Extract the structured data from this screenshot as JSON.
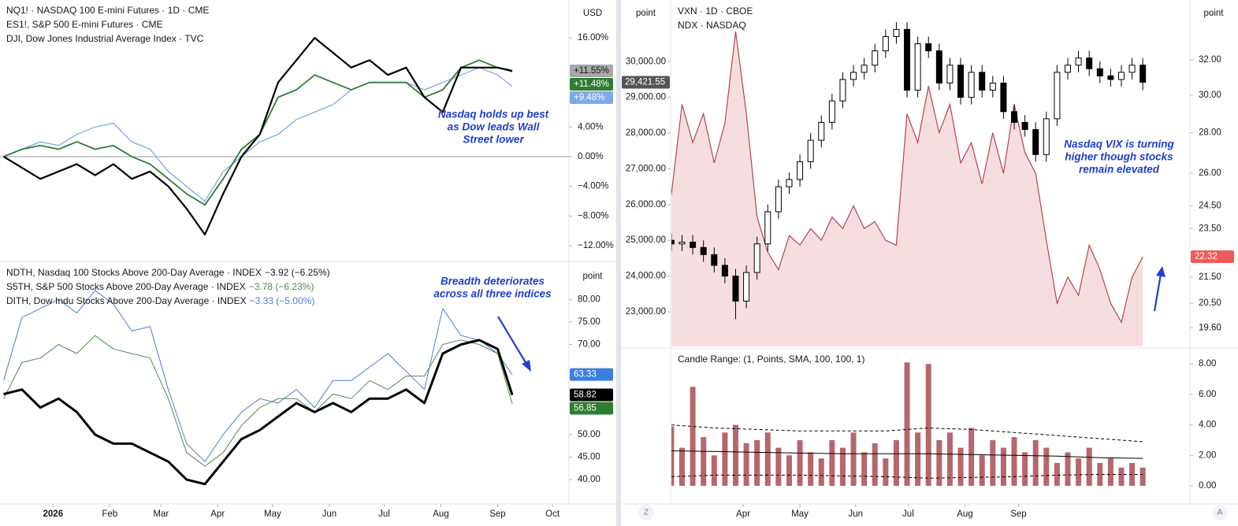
{
  "buttons": [
    "Z",
    "A"
  ],
  "chart_data": [
    {
      "type": "line",
      "y_unit": "USD",
      "zero_line": true,
      "x": [
        -26,
        -16,
        -6,
        4,
        14,
        24,
        34,
        44,
        54,
        64,
        74,
        84,
        94,
        104,
        114,
        124,
        134,
        144,
        154,
        164,
        174,
        184,
        194,
        204,
        214,
        224,
        234,
        244,
        252
      ],
      "xlim": [
        -28,
        283
      ],
      "ylim": [
        -13.9,
        21.1
      ],
      "yticks": [
        {
          "value": 16,
          "label": "16.00%"
        },
        {
          "value": 4,
          "label": "4.00%"
        },
        {
          "value": 0,
          "label": "0.00%"
        },
        {
          "value": -4,
          "label": "−4.00%"
        },
        {
          "value": -8,
          "label": "−8.00%"
        },
        {
          "value": -12,
          "label": "−12.00%"
        }
      ],
      "annotation": [
        "Nasdaq holds up best",
        "as Dow leads Wall",
        "Street lower"
      ],
      "series": [
        {
          "name": "NQ1! · NASDAQ 100 E-mini Futures · 1D · CME",
          "color": "#000000",
          "badge": "+11.55%",
          "badge_color": "#a8a8a8",
          "values": [
            0,
            -1.5,
            -3,
            -2,
            -1,
            -2.5,
            -1,
            -3,
            -2,
            -4,
            -7,
            -10.5,
            -5,
            0,
            3,
            10,
            13,
            16,
            14,
            12,
            13,
            11,
            12,
            8,
            6,
            12,
            12,
            12,
            11.55
          ]
        },
        {
          "name": "ES1!, S&P 500 E-mini Futures · CME",
          "color": "#2e7d32",
          "badge": "+11.48%",
          "badge_color": "#2e7d32",
          "values": [
            0,
            1,
            1.5,
            1,
            2,
            1,
            1.5,
            0,
            -1,
            -3,
            -5,
            -6.5,
            -3,
            1,
            3,
            8,
            9,
            11,
            10,
            9,
            10,
            10,
            10,
            8,
            9,
            12,
            13,
            12,
            11.48
          ]
        },
        {
          "name": "DJI, Dow Jones Industrial Average Index · TVC",
          "color": "#7fa9e6",
          "badge": "+9.48%",
          "badge_color": "#7fa9e6",
          "values": [
            0,
            1,
            2,
            1.5,
            3,
            4,
            4.5,
            2,
            1,
            -2,
            -4,
            -6,
            -2,
            0,
            2,
            3,
            5,
            6,
            7,
            9,
            10,
            10,
            10,
            9,
            10,
            11,
            12,
            11,
            9.48
          ]
        }
      ]
    },
    {
      "type": "line",
      "y_unit": "point",
      "x": [
        -26,
        -16,
        -6,
        4,
        14,
        24,
        34,
        44,
        54,
        64,
        74,
        84,
        94,
        104,
        114,
        124,
        134,
        144,
        154,
        164,
        174,
        184,
        194,
        204,
        214,
        224,
        234,
        244,
        252
      ],
      "xlim": [
        -28,
        283
      ],
      "ylim": [
        34.6,
        88.1
      ],
      "xticks": [
        {
          "value": 1,
          "label": "2026"
        },
        {
          "value": 32,
          "label": "Feb"
        },
        {
          "value": 60,
          "label": "Mar"
        },
        {
          "value": 91,
          "label": "Apr"
        },
        {
          "value": 121,
          "label": "May"
        },
        {
          "value": 152,
          "label": "Jun"
        },
        {
          "value": 182,
          "label": "Jul"
        },
        {
          "value": 213,
          "label": "Aug"
        },
        {
          "value": 244,
          "label": "Sep"
        },
        {
          "value": 274,
          "label": "Oct"
        }
      ],
      "yticks": [
        {
          "value": 80,
          "label": "80.00"
        },
        {
          "value": 75,
          "label": "75.00"
        },
        {
          "value": 70,
          "label": "70.00"
        },
        {
          "value": 50,
          "label": "50.00"
        },
        {
          "value": 45,
          "label": "45.00"
        },
        {
          "value": 40,
          "label": "40.00"
        }
      ],
      "annotation": [
        "Breadth deteriorates",
        "across all three indices"
      ],
      "series": [
        {
          "name": "NDTH, Nasdaq 100 Stocks Above 200-Day Average · INDEX",
          "change": "−3.92 (−6.25%)",
          "color": "#000000",
          "badge": "58.82",
          "badge_color": "#000000",
          "values": [
            59,
            60,
            56,
            58,
            55,
            50,
            48,
            48,
            46,
            44,
            40,
            39,
            44,
            49,
            51,
            54,
            57,
            55,
            57,
            55,
            58,
            58,
            60,
            57,
            68,
            70,
            71,
            69,
            58.82
          ]
        },
        {
          "name": "S5TH, S&P 500 Stocks Above 200-Day Average · INDEX",
          "change": "−3.78 (−6.23%)",
          "color": "#4c8a4c",
          "badge": "56.85",
          "badge_color": "#2e7d32",
          "values": [
            58,
            66,
            67,
            70,
            68,
            72,
            69,
            68,
            67,
            58,
            46,
            43,
            46,
            52,
            56,
            58,
            58,
            55,
            59,
            58,
            62,
            60,
            63,
            63,
            70,
            71,
            70,
            68,
            56.85
          ]
        },
        {
          "name": "DITH, Dow Indu Stocks Above 200-Day Average · INDEX",
          "change": "−3.33 (−5.00%)",
          "color": "#4a7ed8",
          "badge": "63.33",
          "badge_color": "#3d7fe0",
          "values": [
            62,
            76,
            78,
            80,
            77,
            82,
            79,
            73,
            74,
            60,
            48,
            44,
            50,
            55,
            58,
            57,
            60,
            56,
            62,
            62,
            65,
            68,
            64,
            60,
            78,
            72,
            71,
            68,
            63.33
          ]
        }
      ]
    },
    {
      "type": "candlestick",
      "y_unit": "point",
      "y2_unit": "point",
      "y2log": true,
      "x": [
        0,
        1,
        2,
        3,
        4,
        5,
        6,
        7,
        8,
        9,
        10,
        11,
        12,
        13,
        14,
        15,
        16,
        17,
        18,
        19,
        20,
        21,
        22,
        23,
        24,
        25,
        26,
        27,
        28,
        29,
        30,
        31,
        32,
        33,
        34,
        35,
        36,
        37,
        38,
        39,
        40,
        41,
        42,
        43,
        44
      ],
      "xlim": [
        -4.7,
        48.4
      ],
      "ylim": [
        22031,
        31723
      ],
      "y2lim": [
        18.94,
        35.7
      ],
      "yticks": [
        {
          "value": 30000,
          "label": "30,000.00"
        },
        {
          "value": 29000,
          "label": "29,000.00"
        },
        {
          "value": 28000,
          "label": "28,000.00"
        },
        {
          "value": 27000,
          "label": "27,000.00"
        },
        {
          "value": 26000,
          "label": "26,000.00"
        },
        {
          "value": 25000,
          "label": "25,000.00"
        },
        {
          "value": 24000,
          "label": "24,000.00"
        },
        {
          "value": 23000,
          "label": "23,000.00"
        }
      ],
      "y2ticks": [
        {
          "value": 32,
          "label": "32.00"
        },
        {
          "value": 30,
          "label": "30.00"
        },
        {
          "value": 28,
          "label": "28.00"
        },
        {
          "value": 26,
          "label": "26.00"
        },
        {
          "value": 24.5,
          "label": "24.50"
        },
        {
          "value": 23.5,
          "label": "23.50"
        },
        {
          "value": 21.5,
          "label": "21.50"
        },
        {
          "value": 20.5,
          "label": "20.50"
        },
        {
          "value": 19.6,
          "label": "19.60"
        }
      ],
      "annotation": [
        "Nasdaq VIX is turning",
        "higher though stocks",
        "remain elevated"
      ],
      "series": [
        {
          "name": "VXN · 1D · CBOE",
          "axis": "y2",
          "color": "#b5444f",
          "fill": "#f3d3d6",
          "badge": "22.32",
          "badge_color": "#f05a5a",
          "values": [
            25,
            29.5,
            27.5,
            29,
            26.5,
            28.5,
            33.7,
            29,
            24,
            22.5,
            21.8,
            23.2,
            22.8,
            23.5,
            23,
            24,
            23.5,
            24.5,
            23.5,
            23.8,
            23,
            22.8,
            29,
            27.5,
            30.5,
            28,
            29.5,
            26.5,
            27.5,
            25.5,
            28,
            26,
            29.5,
            27,
            26,
            23,
            20.5,
            21.5,
            20.8,
            22.8,
            21.8,
            20.5,
            19.8,
            21.5,
            22.32
          ]
        },
        {
          "name": "NDX · NASDAQ",
          "color": "#000000",
          "badge": "29,421.55",
          "badge_color": "#555555",
          "open": [
            25000,
            24900,
            24950,
            24800,
            24600,
            24300,
            24000,
            23300,
            24100,
            24900,
            25800,
            26500,
            26700,
            27200,
            27800,
            28300,
            28900,
            29500,
            29700,
            29900,
            30300,
            30700,
            30900,
            29200,
            30500,
            30300,
            29400,
            29900,
            29000,
            29700,
            29200,
            29400,
            28600,
            28300,
            28100,
            27400,
            28400,
            29700,
            29900,
            30100,
            29800,
            29600,
            29500,
            29700,
            29900
          ],
          "high": [
            25200,
            25150,
            25150,
            25000,
            24800,
            24500,
            24200,
            24300,
            25100,
            26000,
            26700,
            26900,
            27400,
            28000,
            28500,
            29100,
            29700,
            29900,
            30100,
            30500,
            30900,
            31100,
            31100,
            30700,
            30700,
            30500,
            30100,
            30100,
            29900,
            29900,
            29600,
            29600,
            28800,
            28500,
            28300,
            28600,
            29900,
            30100,
            30300,
            30300,
            30000,
            29800,
            29900,
            30100,
            30100
          ],
          "low": [
            24700,
            24700,
            24600,
            24400,
            24100,
            23800,
            22800,
            23100,
            23900,
            24700,
            25600,
            26300,
            26500,
            27000,
            27600,
            28100,
            28700,
            29300,
            29500,
            29700,
            30100,
            30500,
            29000,
            29000,
            30100,
            29200,
            29200,
            28800,
            28800,
            29000,
            29000,
            28400,
            28100,
            27900,
            27200,
            27200,
            28200,
            29500,
            29700,
            29600,
            29400,
            29300,
            29300,
            29500,
            29200
          ],
          "close": [
            24900,
            24950,
            24800,
            24600,
            24300,
            24000,
            23300,
            24100,
            24900,
            25800,
            26500,
            26700,
            27200,
            27800,
            28300,
            28900,
            29500,
            29700,
            29900,
            30300,
            30700,
            30900,
            29200,
            30500,
            30300,
            29400,
            29900,
            29000,
            29700,
            29200,
            29400,
            28600,
            28300,
            28100,
            27400,
            28400,
            29700,
            29900,
            30100,
            29800,
            29600,
            29500,
            29700,
            29900,
            29421.55
          ]
        }
      ]
    },
    {
      "type": "bar",
      "title": "Candle Range:  (1, Points, SMA, 100, 100, 1)",
      "color": "#b5676d",
      "x": [
        0,
        1,
        2,
        3,
        4,
        5,
        6,
        7,
        8,
        9,
        10,
        11,
        12,
        13,
        14,
        15,
        16,
        17,
        18,
        19,
        20,
        21,
        22,
        23,
        24,
        25,
        26,
        27,
        28,
        29,
        30,
        31,
        32,
        33,
        34,
        35,
        36,
        37,
        38,
        39,
        40,
        41,
        42,
        43,
        44
      ],
      "values": [
        3.9,
        2.5,
        6.5,
        3.2,
        2,
        3.5,
        4,
        2.8,
        3,
        3.5,
        2.5,
        2,
        3,
        2.2,
        1.8,
        3,
        2.5,
        3.5,
        2.2,
        2.8,
        1.8,
        3,
        8.1,
        3.5,
        8,
        3,
        3.5,
        2.5,
        3.8,
        2,
        3,
        2.5,
        3.2,
        2.2,
        3,
        2.5,
        1.5,
        2.2,
        1.8,
        2.5,
        1.5,
        1.8,
        1.2,
        1.5,
        1.2
      ],
      "xlim": [
        -4.7,
        48.4
      ],
      "ylim": [
        -1.19,
        8.94
      ],
      "xticks": [
        {
          "value": 6.7,
          "label": "Apr"
        },
        {
          "value": 12,
          "label": "May"
        },
        {
          "value": 17.2,
          "label": "Jun"
        },
        {
          "value": 22.1,
          "label": "Jul"
        },
        {
          "value": 27.4,
          "label": "Aug"
        },
        {
          "value": 32.4,
          "label": "Sep"
        }
      ],
      "yticks": [
        {
          "value": 8,
          "label": "8.00"
        },
        {
          "value": 6,
          "label": "6.00"
        },
        {
          "value": 4,
          "label": "4.00"
        },
        {
          "value": 2,
          "label": "2.00"
        },
        {
          "value": 0,
          "label": "0.00"
        }
      ],
      "lines": [
        {
          "color": "#000000",
          "dash": false,
          "x": [
            0,
            4,
            8,
            12,
            16,
            20,
            24,
            28,
            32,
            36,
            40,
            44
          ],
          "values": [
            2.3,
            2.25,
            2.2,
            2.15,
            2.1,
            2.1,
            2.1,
            2.05,
            2.0,
            1.95,
            1.85,
            1.8
          ]
        },
        {
          "color": "#000000",
          "dash": true,
          "x": [
            0,
            4,
            8,
            12,
            16,
            20,
            24,
            28,
            32,
            36,
            40,
            44
          ],
          "values": [
            4.0,
            3.8,
            3.7,
            3.6,
            3.6,
            3.6,
            3.8,
            3.7,
            3.5,
            3.3,
            3.1,
            2.9
          ]
        },
        {
          "color": "#000000",
          "dash": true,
          "x": [
            0,
            4,
            8,
            12,
            16,
            20,
            24,
            28,
            32,
            36,
            40,
            44
          ],
          "values": [
            0.6,
            0.7,
            0.7,
            0.7,
            0.65,
            0.6,
            0.5,
            0.55,
            0.6,
            0.7,
            0.75,
            0.75
          ]
        }
      ]
    }
  ]
}
